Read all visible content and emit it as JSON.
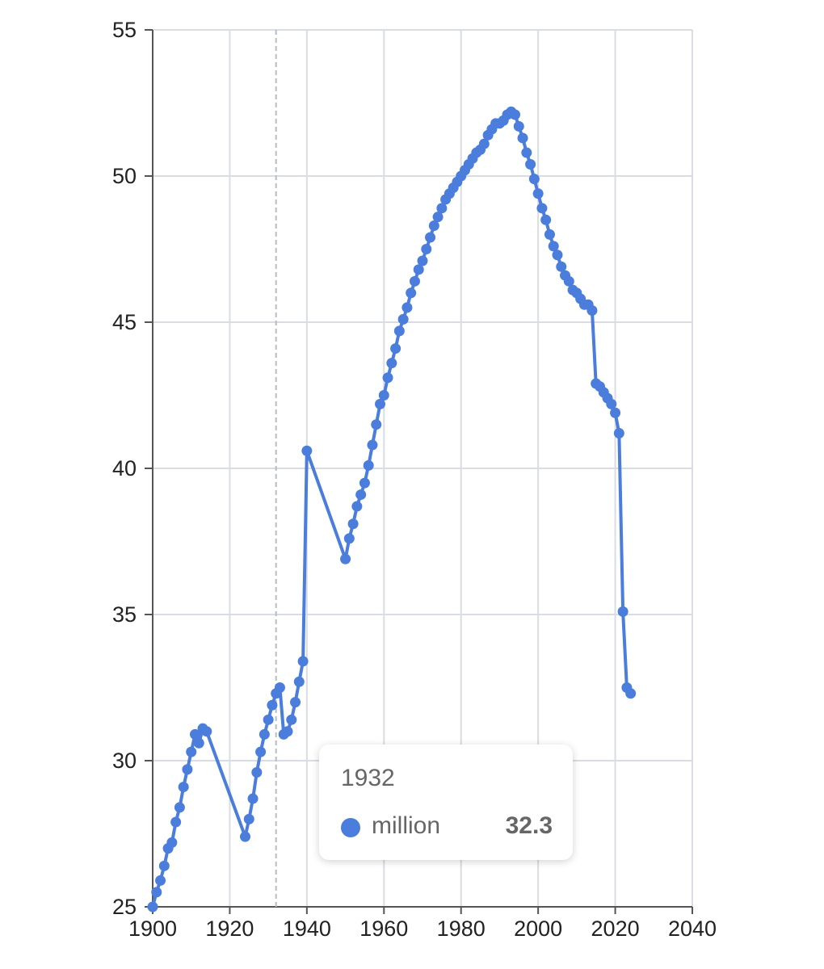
{
  "chart_data": {
    "type": "line",
    "title": "",
    "xlabel": "",
    "ylabel": "",
    "xlim": [
      1900,
      2040
    ],
    "ylim": [
      25,
      55
    ],
    "x_ticks": [
      "1900",
      "1920",
      "1940",
      "1960",
      "1980",
      "2000",
      "2020",
      "2040"
    ],
    "y_ticks": [
      "25",
      "30",
      "35",
      "40",
      "45",
      "50",
      "55"
    ],
    "grid": true,
    "line_color": "#4a7ddc",
    "series": [
      {
        "name": "million",
        "points": [
          [
            1900,
            25.0
          ],
          [
            1901,
            25.5
          ],
          [
            1902,
            25.9
          ],
          [
            1903,
            26.4
          ],
          [
            1904,
            27.0
          ],
          [
            1905,
            27.2
          ],
          [
            1906,
            27.9
          ],
          [
            1907,
            28.4
          ],
          [
            1908,
            29.1
          ],
          [
            1909,
            29.7
          ],
          [
            1910,
            30.3
          ],
          [
            1911,
            30.9
          ],
          [
            1912,
            30.6
          ],
          [
            1913,
            31.1
          ],
          [
            1914,
            31.0
          ],
          [
            1924,
            27.4
          ],
          [
            1925,
            28.0
          ],
          [
            1926,
            28.7
          ],
          [
            1927,
            29.6
          ],
          [
            1928,
            30.3
          ],
          [
            1929,
            30.9
          ],
          [
            1930,
            31.4
          ],
          [
            1931,
            31.9
          ],
          [
            1932,
            32.3
          ],
          [
            1933,
            32.5
          ],
          [
            1934,
            30.9
          ],
          [
            1935,
            31.0
          ],
          [
            1936,
            31.4
          ],
          [
            1937,
            32.0
          ],
          [
            1938,
            32.7
          ],
          [
            1939,
            33.4
          ],
          [
            1940,
            40.6
          ],
          [
            1950,
            36.9
          ],
          [
            1951,
            37.6
          ],
          [
            1952,
            38.1
          ],
          [
            1953,
            38.7
          ],
          [
            1954,
            39.1
          ],
          [
            1955,
            39.5
          ],
          [
            1956,
            40.1
          ],
          [
            1957,
            40.8
          ],
          [
            1958,
            41.5
          ],
          [
            1959,
            42.2
          ],
          [
            1960,
            42.5
          ],
          [
            1961,
            43.1
          ],
          [
            1962,
            43.6
          ],
          [
            1963,
            44.1
          ],
          [
            1964,
            44.7
          ],
          [
            1965,
            45.1
          ],
          [
            1966,
            45.5
          ],
          [
            1967,
            46.0
          ],
          [
            1968,
            46.4
          ],
          [
            1969,
            46.8
          ],
          [
            1970,
            47.1
          ],
          [
            1971,
            47.5
          ],
          [
            1972,
            47.9
          ],
          [
            1973,
            48.3
          ],
          [
            1974,
            48.6
          ],
          [
            1975,
            48.9
          ],
          [
            1976,
            49.2
          ],
          [
            1977,
            49.4
          ],
          [
            1978,
            49.6
          ],
          [
            1979,
            49.8
          ],
          [
            1980,
            50.0
          ],
          [
            1981,
            50.2
          ],
          [
            1982,
            50.4
          ],
          [
            1983,
            50.6
          ],
          [
            1984,
            50.8
          ],
          [
            1985,
            50.9
          ],
          [
            1986,
            51.1
          ],
          [
            1987,
            51.4
          ],
          [
            1988,
            51.6
          ],
          [
            1989,
            51.8
          ],
          [
            1990,
            51.8
          ],
          [
            1991,
            51.9
          ],
          [
            1992,
            52.1
          ],
          [
            1993,
            52.2
          ],
          [
            1994,
            52.1
          ],
          [
            1995,
            51.7
          ],
          [
            1996,
            51.3
          ],
          [
            1997,
            50.8
          ],
          [
            1998,
            50.4
          ],
          [
            1999,
            49.9
          ],
          [
            2000,
            49.4
          ],
          [
            2001,
            48.9
          ],
          [
            2002,
            48.5
          ],
          [
            2003,
            48.0
          ],
          [
            2004,
            47.6
          ],
          [
            2005,
            47.3
          ],
          [
            2006,
            46.9
          ],
          [
            2007,
            46.6
          ],
          [
            2008,
            46.4
          ],
          [
            2009,
            46.1
          ],
          [
            2010,
            46.0
          ],
          [
            2011,
            45.8
          ],
          [
            2012,
            45.6
          ],
          [
            2013,
            45.6
          ],
          [
            2014,
            45.4
          ],
          [
            2015,
            42.9
          ],
          [
            2016,
            42.8
          ],
          [
            2017,
            42.6
          ],
          [
            2018,
            42.4
          ],
          [
            2019,
            42.2
          ],
          [
            2020,
            41.9
          ],
          [
            2021,
            41.2
          ],
          [
            2022,
            35.1
          ],
          [
            2023,
            32.5
          ],
          [
            2024,
            32.3
          ]
        ]
      }
    ],
    "crosshair_x": 1932,
    "tooltip": {
      "title": "1932",
      "series": "million",
      "value": "32.3"
    }
  }
}
